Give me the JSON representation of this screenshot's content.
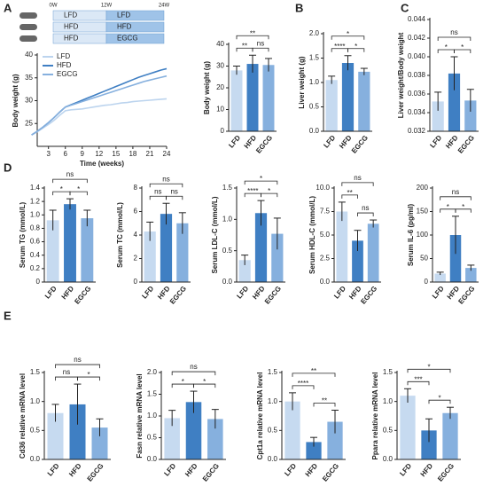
{
  "panel_labels": [
    "A",
    "B",
    "C",
    "D",
    "E"
  ],
  "schematic": {
    "time_labels": [
      "0W",
      "12W",
      "24W"
    ],
    "rows": [
      [
        "LFD",
        "LFD"
      ],
      [
        "HFD",
        "HFD"
      ],
      [
        "HFD",
        "EGCG"
      ]
    ]
  },
  "chart_data": [
    {
      "type": "line",
      "x_label": "Time (weeks)",
      "y_label": "Body weight (g)",
      "x": [
        0,
        1,
        2,
        3,
        4,
        5,
        6,
        7,
        8,
        9,
        10,
        11,
        12,
        13,
        14,
        15,
        16,
        17,
        18,
        19,
        20,
        21,
        22,
        23,
        24
      ],
      "xlim": [
        1,
        24
      ],
      "xticks": [
        3,
        6,
        9,
        12,
        15,
        18,
        21,
        24
      ],
      "ylim": [
        20,
        40
      ],
      "yticks": [
        25,
        30,
        35,
        40
      ],
      "legend": "upper left",
      "series": [
        {
          "name": "LFD",
          "color": "#bcd4ee",
          "values": [
            22.5,
            23.2,
            24,
            24.8,
            25.7,
            26.8,
            27.8,
            28,
            28.1,
            28.2,
            28.4,
            28.6,
            28.8,
            29,
            29.1,
            29.3,
            29.5,
            29.6,
            29.8,
            29.9,
            30,
            30.1,
            30.2,
            30.3,
            30.4
          ]
        },
        {
          "name": "HFD",
          "color": "#3f7fc3",
          "values": [
            22.5,
            23.3,
            24.2,
            25.2,
            26.3,
            27.5,
            28.6,
            29.1,
            29.6,
            30.1,
            30.6,
            31.1,
            31.6,
            32.1,
            32.6,
            33.1,
            33.6,
            34.1,
            34.6,
            35.1,
            35.5,
            35.9,
            36.3,
            36.7,
            37
          ]
        },
        {
          "name": "EGCG",
          "color": "#86b0de",
          "values": [
            22.5,
            23.3,
            24.2,
            25.2,
            26.3,
            27.5,
            28.6,
            29,
            29.4,
            29.8,
            30.2,
            30.6,
            31,
            31.4,
            31.8,
            32.2,
            32.6,
            33,
            33.4,
            33.8,
            34.2,
            34.5,
            34.8,
            35.1,
            35.4
          ]
        }
      ]
    },
    {
      "type": "bar",
      "y_label": "Body weight (g)",
      "categories": [
        "LFD",
        "HFD",
        "EGCG"
      ],
      "colors": [
        "#c6daf0",
        "#3f7fc3",
        "#86b0de"
      ],
      "values": [
        28,
        31,
        30.5
      ],
      "errors": [
        2,
        4,
        3
      ],
      "ylim": [
        0,
        40
      ],
      "yticks": [
        0,
        10,
        20,
        30,
        40
      ],
      "significance": [
        {
          "from": "LFD",
          "to": "HFD",
          "label": "**"
        },
        {
          "from": "HFD",
          "to": "EGCG",
          "label": "ns"
        },
        {
          "from": "LFD",
          "to": "EGCG",
          "label": "**"
        }
      ]
    },
    {
      "type": "bar",
      "y_label": "Liver weight (g)",
      "categories": [
        "LFD",
        "HFD",
        "EGCG"
      ],
      "colors": [
        "#c6daf0",
        "#3f7fc3",
        "#86b0de"
      ],
      "values": [
        1.05,
        1.4,
        1.22
      ],
      "errors": [
        0.08,
        0.15,
        0.07
      ],
      "ylim": [
        0,
        2
      ],
      "yticks": [
        {
          "value": 0,
          "label": "0.0"
        },
        0.5,
        {
          "value": 1,
          "label": "1.0"
        },
        1.5,
        {
          "value": 2,
          "label": "2.0"
        }
      ],
      "significance": [
        {
          "from": "LFD",
          "to": "HFD",
          "label": "****"
        },
        {
          "from": "HFD",
          "to": "EGCG",
          "label": "*"
        },
        {
          "from": "LFD",
          "to": "EGCG",
          "label": "*"
        }
      ]
    },
    {
      "type": "bar",
      "y_label": "Liver weight/Body weight",
      "categories": [
        "LFD",
        "HFD",
        "EGCG"
      ],
      "colors": [
        "#c6daf0",
        "#3f7fc3",
        "#86b0de"
      ],
      "values": [
        0.0352,
        0.0382,
        0.0353
      ],
      "errors": [
        0.001,
        0.0018,
        0.0012
      ],
      "ylim": [
        0.032,
        0.044
      ],
      "yticks": [
        0.032,
        0.034,
        0.036,
        0.038,
        {
          "value": 0.04,
          "label": "0.040"
        },
        0.042,
        0.044
      ],
      "significance": [
        {
          "from": "LFD",
          "to": "HFD",
          "label": "*"
        },
        {
          "from": "HFD",
          "to": "EGCG",
          "label": "*"
        },
        {
          "from": "LFD",
          "to": "EGCG",
          "label": "ns"
        }
      ]
    },
    {
      "type": "bar",
      "y_label": "Serum TG (mmol/L)",
      "categories": [
        "LFD",
        "HFD",
        "EGCG"
      ],
      "colors": [
        "#c6daf0",
        "#3f7fc3",
        "#86b0de"
      ],
      "values": [
        0.92,
        1.16,
        0.95
      ],
      "errors": [
        0.15,
        0.08,
        0.12
      ],
      "ylim": [
        0,
        1.4
      ],
      "yticks": [
        0,
        0.2,
        0.4,
        0.6,
        0.8,
        {
          "value": 1,
          "label": "1.0"
        },
        1.2,
        1.4
      ],
      "significance": [
        {
          "from": "LFD",
          "to": "HFD",
          "label": "*"
        },
        {
          "from": "HFD",
          "to": "EGCG",
          "label": "*"
        },
        {
          "from": "LFD",
          "to": "EGCG",
          "label": "ns"
        }
      ]
    },
    {
      "type": "bar",
      "y_label": "Serum TC (mmol/L)",
      "categories": [
        "LFD",
        "HFD",
        "EGCG"
      ],
      "colors": [
        "#c6daf0",
        "#3f7fc3",
        "#86b0de"
      ],
      "values": [
        4.3,
        5.8,
        5.0
      ],
      "errors": [
        0.8,
        0.9,
        0.9
      ],
      "ylim": [
        0,
        8
      ],
      "yticks": [
        0,
        2,
        4,
        6,
        8
      ],
      "significance": [
        {
          "from": "LFD",
          "to": "HFD",
          "label": "ns"
        },
        {
          "from": "HFD",
          "to": "EGCG",
          "label": "ns"
        },
        {
          "from": "LFD",
          "to": "EGCG",
          "label": "ns"
        }
      ]
    },
    {
      "type": "bar",
      "y_label": "Serum LDL-C (mmol/L)",
      "categories": [
        "LFD",
        "HFD",
        "EGCG"
      ],
      "colors": [
        "#c6daf0",
        "#3f7fc3",
        "#86b0de"
      ],
      "values": [
        0.35,
        1.1,
        0.77
      ],
      "errors": [
        0.08,
        0.2,
        0.25
      ],
      "ylim": [
        0,
        1.5
      ],
      "yticks": [
        {
          "value": 0,
          "label": "0.0"
        },
        0.5,
        {
          "value": 1,
          "label": "1.0"
        },
        1.5
      ],
      "significance": [
        {
          "from": "LFD",
          "to": "HFD",
          "label": "****"
        },
        {
          "from": "HFD",
          "to": "EGCG",
          "label": "*"
        },
        {
          "from": "LFD",
          "to": "EGCG",
          "label": "*"
        }
      ]
    },
    {
      "type": "bar",
      "y_label": "Serum HDL-C (mmol/L)",
      "categories": [
        "LFD",
        "HFD",
        "EGCG"
      ],
      "colors": [
        "#c6daf0",
        "#3f7fc3",
        "#86b0de"
      ],
      "values": [
        7.5,
        4.4,
        6.2
      ],
      "errors": [
        1,
        1.1,
        0.4
      ],
      "ylim": [
        0,
        10
      ],
      "yticks": [
        {
          "value": 0,
          "label": "0.0"
        },
        2.5,
        {
          "value": 5,
          "label": "5.0"
        },
        7.5,
        {
          "value": 10,
          "label": "10.0"
        }
      ],
      "significance": [
        {
          "from": "LFD",
          "to": "HFD",
          "label": "**"
        },
        {
          "from": "HFD",
          "to": "EGCG",
          "label": "ns"
        },
        {
          "from": "LFD",
          "to": "EGCG",
          "label": "ns"
        }
      ]
    },
    {
      "type": "bar",
      "y_label": "Serum IL-6 (pg/ml)",
      "categories": [
        "LFD",
        "HFD",
        "EGCG"
      ],
      "colors": [
        "#c6daf0",
        "#3f7fc3",
        "#86b0de"
      ],
      "values": [
        18,
        100,
        30
      ],
      "errors": [
        3,
        40,
        6
      ],
      "ylim": [
        0,
        200
      ],
      "yticks": [
        0,
        50,
        100,
        150,
        200
      ],
      "significance": [
        {
          "from": "LFD",
          "to": "HFD",
          "label": "*"
        },
        {
          "from": "HFD",
          "to": "EGCG",
          "label": "*"
        },
        {
          "from": "LFD",
          "to": "EGCG",
          "label": "ns"
        }
      ]
    },
    {
      "type": "bar",
      "y_label": "Cd36 relative mRNA level",
      "categories": [
        "LFD",
        "HFD",
        "EGCG"
      ],
      "colors": [
        "#c6daf0",
        "#3f7fc3",
        "#86b0de"
      ],
      "values": [
        0.8,
        0.95,
        0.55
      ],
      "errors": [
        0.15,
        0.35,
        0.15
      ],
      "ylim": [
        0,
        1.5
      ],
      "yticks": [
        {
          "value": 0,
          "label": "0.0"
        },
        0.5,
        {
          "value": 1,
          "label": "1.0"
        },
        1.5
      ],
      "significance": [
        {
          "from": "LFD",
          "to": "HFD",
          "label": "ns"
        },
        {
          "from": "HFD",
          "to": "EGCG",
          "label": "*"
        },
        {
          "from": "LFD",
          "to": "EGCG",
          "label": "ns"
        }
      ]
    },
    {
      "type": "bar",
      "y_label": "Fasn relative mRNA level",
      "categories": [
        "LFD",
        "HFD",
        "EGCG"
      ],
      "colors": [
        "#c6daf0",
        "#3f7fc3",
        "#86b0de"
      ],
      "values": [
        0.95,
        1.32,
        0.93
      ],
      "errors": [
        0.18,
        0.25,
        0.22
      ],
      "ylim": [
        0,
        2
      ],
      "yticks": [
        {
          "value": 0,
          "label": "0.0"
        },
        0.5,
        {
          "value": 1,
          "label": "1.0"
        },
        1.5,
        {
          "value": 2,
          "label": "2.0"
        }
      ],
      "significance": [
        {
          "from": "LFD",
          "to": "HFD",
          "label": "*"
        },
        {
          "from": "HFD",
          "to": "EGCG",
          "label": "*"
        },
        {
          "from": "LFD",
          "to": "EGCG",
          "label": "ns"
        }
      ]
    },
    {
      "type": "bar",
      "y_label": "Cpt1a relative mRNA level",
      "categories": [
        "LFD",
        "HFD",
        "EGCG"
      ],
      "colors": [
        "#c6daf0",
        "#3f7fc3",
        "#86b0de"
      ],
      "values": [
        1.0,
        0.3,
        0.65
      ],
      "errors": [
        0.15,
        0.08,
        0.2
      ],
      "ylim": [
        0,
        1.5
      ],
      "yticks": [
        {
          "value": 0,
          "label": "0.0"
        },
        0.5,
        {
          "value": 1,
          "label": "1.0"
        },
        1.5
      ],
      "significance": [
        {
          "from": "LFD",
          "to": "HFD",
          "label": "****"
        },
        {
          "from": "HFD",
          "to": "EGCG",
          "label": "**"
        },
        {
          "from": "LFD",
          "to": "EGCG",
          "label": "**"
        }
      ]
    },
    {
      "type": "bar",
      "y_label": "Ppara relative mRNA level",
      "categories": [
        "LFD",
        "HFD",
        "EGCG"
      ],
      "colors": [
        "#c6daf0",
        "#3f7fc3",
        "#86b0de"
      ],
      "values": [
        1.1,
        0.5,
        0.8
      ],
      "errors": [
        0.12,
        0.2,
        0.1
      ],
      "ylim": [
        0,
        1.5
      ],
      "yticks": [
        {
          "value": 0,
          "label": "0.0"
        },
        0.5,
        {
          "value": 1,
          "label": "1.0"
        },
        1.5
      ],
      "significance": [
        {
          "from": "LFD",
          "to": "HFD",
          "label": "***"
        },
        {
          "from": "HFD",
          "to": "EGCG",
          "label": "*"
        },
        {
          "from": "LFD",
          "to": "EGCG",
          "label": "*"
        }
      ]
    }
  ]
}
